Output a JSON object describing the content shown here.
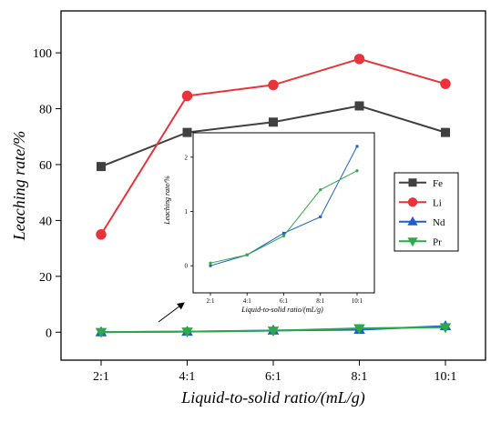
{
  "chart_data": {
    "type": "line",
    "xlabel": "Liquid-to-solid ratio/(mL/g)",
    "ylabel": "Leaching rate/%",
    "categories": [
      "2:1",
      "4:1",
      "6:1",
      "8:1",
      "10:1"
    ],
    "ylim": [
      -10,
      115
    ],
    "yticks": [
      0,
      20,
      40,
      60,
      80,
      100
    ],
    "grid": false,
    "legend_position": "right",
    "series": [
      {
        "name": "Fe",
        "color": "#404040",
        "marker": "square",
        "values": [
          59.3,
          71.5,
          75.2,
          81.0,
          71.5
        ]
      },
      {
        "name": "Li",
        "color": "#e8333a",
        "marker": "circle",
        "values": [
          35.0,
          84.6,
          88.5,
          97.8,
          88.9
        ]
      },
      {
        "name": "Nd",
        "color": "#1f5fcc",
        "marker": "triangle-up",
        "values": [
          0.0,
          0.2,
          0.6,
          0.9,
          2.2
        ]
      },
      {
        "name": "Pr",
        "color": "#2ea84a",
        "marker": "triangle-down",
        "values": [
          0.05,
          0.2,
          0.55,
          1.4,
          1.75
        ]
      }
    ],
    "inset": {
      "xlabel": "Liquid-to-solid ratio/(mL/g)",
      "ylabel": "Leaching rate/%",
      "categories": [
        "2:1",
        "4:1",
        "6:1",
        "8:1",
        "10:1"
      ],
      "ylim": [
        -0.5,
        2.45
      ],
      "yticks": [
        0,
        1,
        2
      ],
      "series": [
        {
          "name": "Nd",
          "color": "#1f5fcc",
          "values": [
            0.0,
            0.2,
            0.6,
            0.9,
            2.2
          ]
        },
        {
          "name": "Pr",
          "color": "#2ea84a",
          "values": [
            0.05,
            0.2,
            0.55,
            1.4,
            1.75
          ]
        }
      ]
    }
  }
}
